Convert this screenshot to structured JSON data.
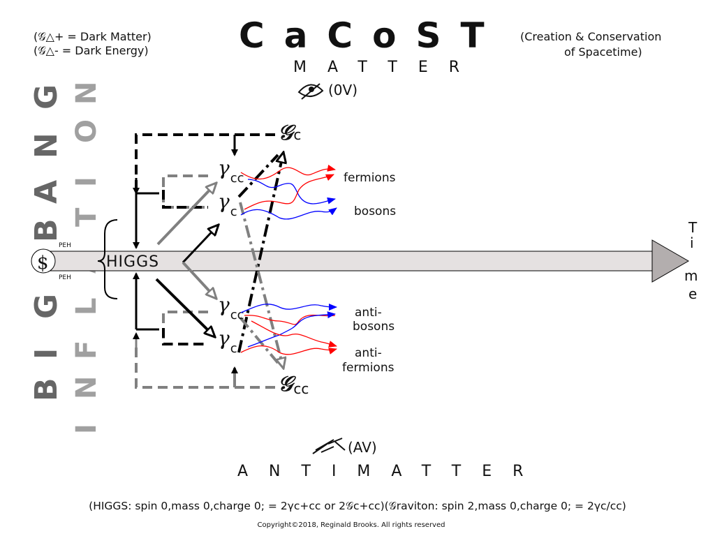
{
  "legend": {
    "line1": "(𝒢△+ = Dark Matter)",
    "line2": "(𝒢△- = Dark Energy)"
  },
  "title": "CaCoST",
  "subtitle": {
    "line1": "(Creation & Conservation",
    "line2": "of Spacetime)"
  },
  "matter": {
    "label": "MATTER",
    "value": "(0V)"
  },
  "antimatter": {
    "label": "ANTIMATTER",
    "value": "(AV)"
  },
  "big_bang": "BIGBANG",
  "inflation": "INFLATION",
  "time": [
    "T",
    "i",
    "m",
    "e"
  ],
  "center": {
    "singularity": "$",
    "peh_top": "PEH",
    "peh_bottom": "PEH",
    "higgs": "HIGGS"
  },
  "nodes": {
    "gc_top": "𝒢",
    "gc_top_sub": "c",
    "gamma_cc_top": "γ",
    "gamma_cc_top_sub": "cc",
    "gamma_c_top": "γ",
    "gamma_c_top_sub": "c",
    "gamma_cc_bottom": "γ",
    "gamma_cc_bottom_sub": "cc",
    "gamma_c_bottom": "γ",
    "gamma_c_bottom_sub": "c",
    "gcc_bottom": "𝒢",
    "gcc_bottom_sub": "cc"
  },
  "particles": {
    "fermions": "fermions",
    "bosons": "bosons",
    "antibosons_1": "anti-",
    "antibosons_2": "bosons",
    "antifermions_1": "anti-",
    "antifermions_2": "fermions"
  },
  "footer": {
    "formula": "(HIGGS: spin 0,mass 0,charge 0; = 2γc+cc or 2𝒢c+cc)(𝒢raviton: spin 2,mass 0,charge 0; = 2γc/cc)",
    "copyright": "Copyright©2018, Reginald Brooks. All rights reserved"
  },
  "colors": {
    "bar": "#e5e1e1",
    "dark": "#000000",
    "gray": "#808080",
    "red": "#ff0000",
    "blue": "#0000ff",
    "bigbang": "#666666",
    "inflation": "#a0a0a0"
  }
}
